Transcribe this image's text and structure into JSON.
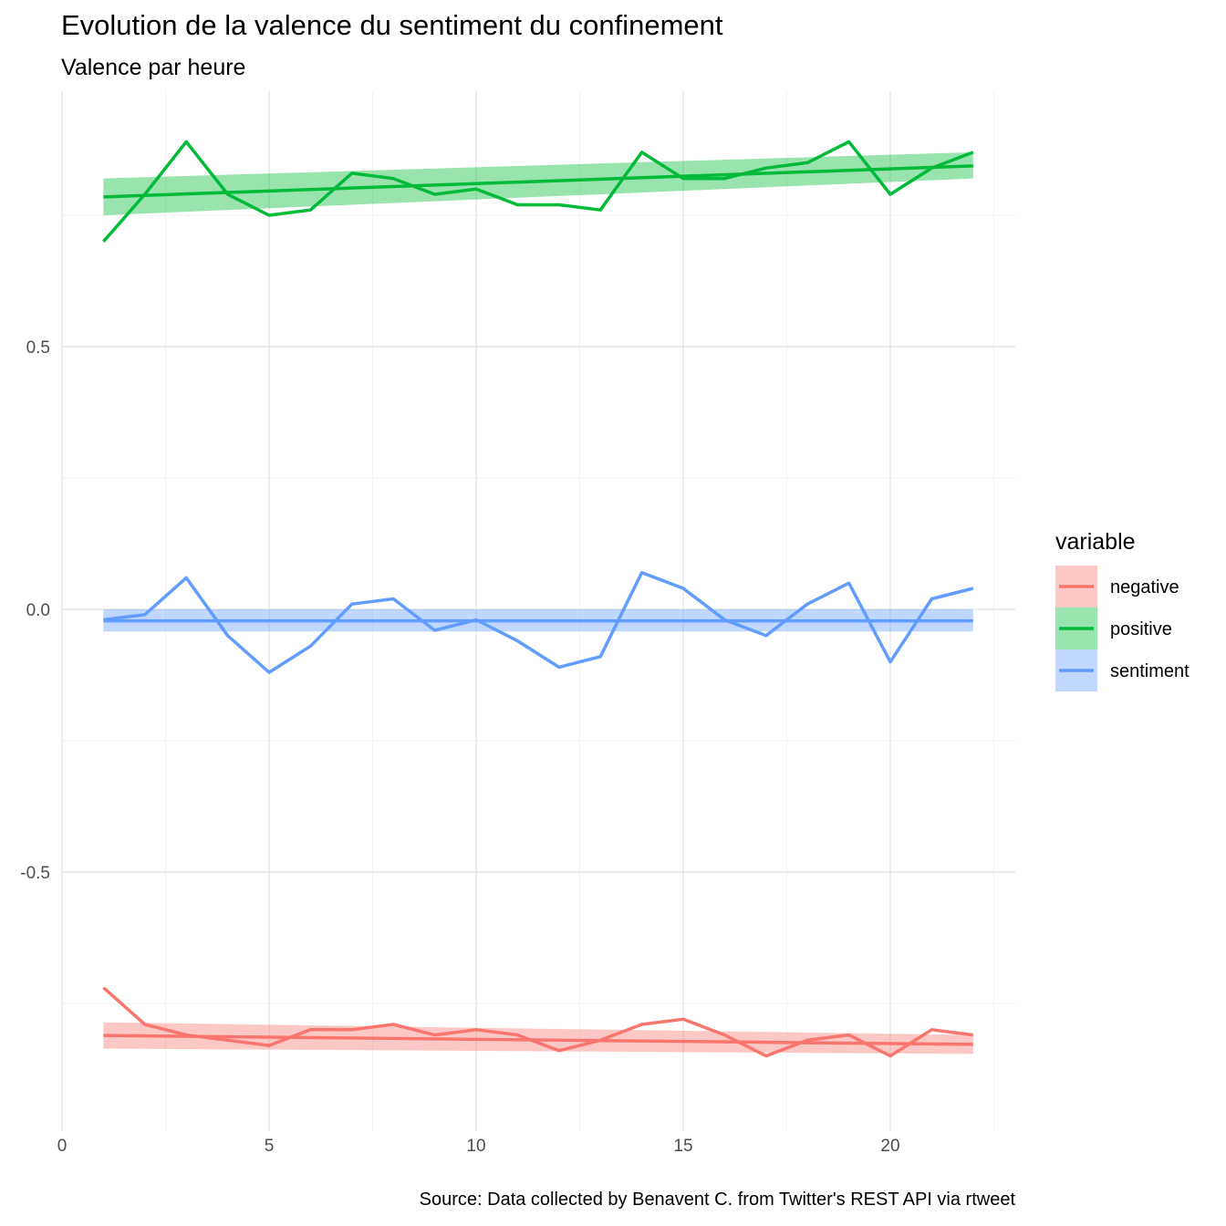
{
  "chart_data": {
    "type": "line",
    "title": "Evolution de la valence du sentiment du confinement",
    "subtitle": "Valence par heure",
    "caption": "Source: Data collected by Benavent C. from Twitter's REST API via rtweet",
    "xlabel": "",
    "ylabel": "",
    "xlim": [
      0,
      23
    ],
    "ylim": [
      -0.98,
      0.97
    ],
    "x_ticks": [
      0,
      5,
      10,
      15,
      20
    ],
    "y_ticks": [
      -0.5,
      0.0,
      0.5
    ],
    "y_tick_labels": [
      "-0.5",
      "0.0",
      "0.5"
    ],
    "grid": true,
    "legend": {
      "title": "variable",
      "position": "right"
    },
    "x": [
      1,
      2,
      3,
      4,
      5,
      6,
      7,
      8,
      9,
      10,
      11,
      12,
      13,
      14,
      15,
      16,
      17,
      18,
      19,
      20,
      21,
      22
    ],
    "series": [
      {
        "name": "negative",
        "color": "#F8766D",
        "values": [
          -0.72,
          -0.79,
          -0.81,
          -0.82,
          -0.83,
          -0.8,
          -0.8,
          -0.79,
          -0.81,
          -0.8,
          -0.81,
          -0.84,
          -0.82,
          -0.79,
          -0.78,
          -0.81,
          -0.85,
          -0.82,
          -0.81,
          -0.85,
          -0.8,
          -0.81
        ],
        "trend": [
          -0.811,
          -0.8125
        ],
        "trend_end": [
          -0.811,
          -0.828
        ],
        "band_low": [
          -0.836,
          -0.846
        ],
        "band_high": [
          -0.786,
          -0.81
        ]
      },
      {
        "name": "positive",
        "color": "#00BA38",
        "values": [
          0.7,
          0.79,
          0.89,
          0.79,
          0.75,
          0.76,
          0.83,
          0.82,
          0.79,
          0.8,
          0.77,
          0.77,
          0.76,
          0.87,
          0.82,
          0.82,
          0.84,
          0.85,
          0.89,
          0.79,
          0.84,
          0.87
        ],
        "trend_end": [
          0.785,
          0.844
        ],
        "band_low": [
          0.75,
          0.82
        ],
        "band_high": [
          0.82,
          0.87
        ]
      },
      {
        "name": "sentiment",
        "color": "#619CFF",
        "values": [
          -0.02,
          -0.01,
          0.06,
          -0.05,
          -0.12,
          -0.07,
          0.01,
          0.02,
          -0.04,
          -0.02,
          -0.06,
          -0.11,
          -0.09,
          0.07,
          0.04,
          -0.02,
          -0.05,
          0.01,
          0.05,
          -0.1,
          0.02,
          0.04
        ],
        "trend_end": [
          -0.022,
          -0.022
        ],
        "band_low": [
          -0.042,
          -0.042
        ],
        "band_high": [
          0.0,
          0.0
        ]
      }
    ]
  }
}
